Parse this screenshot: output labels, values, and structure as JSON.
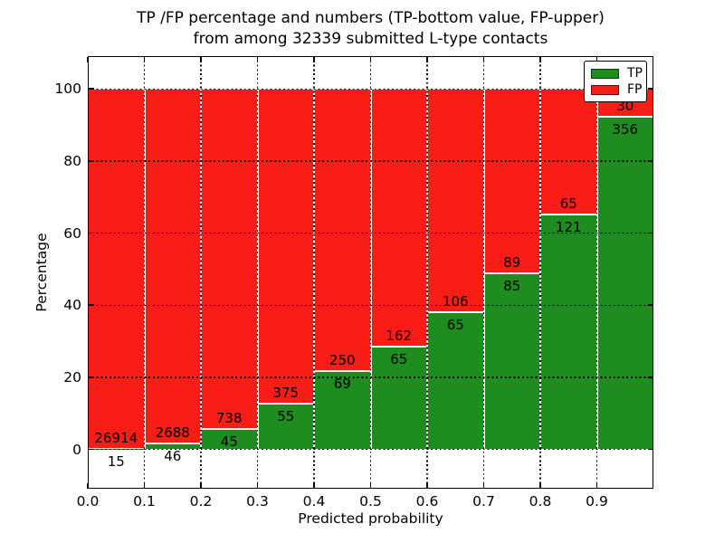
{
  "title": {
    "line1": "TP /FP percentage and numbers (TP-bottom value, FP-upper)",
    "line2": "from among 32339 submitted L-type contacts"
  },
  "axes": {
    "xlabel": "Predicted probability",
    "ylabel": "Percentage"
  },
  "chart_data": {
    "type": "bar",
    "subtype": "stacked-percentage",
    "title": "TP /FP percentage and numbers (TP-bottom value, FP-upper) from among 32339 submitted L-type contacts",
    "xlabel": "Predicted probability",
    "ylabel": "Percentage",
    "total_contacts": 32339,
    "bin_edges": [
      0.0,
      0.1,
      0.2,
      0.3,
      0.4,
      0.5,
      0.6,
      0.7,
      0.8,
      0.9,
      1.0
    ],
    "categories": [
      "0.0-0.1",
      "0.1-0.2",
      "0.2-0.3",
      "0.3-0.4",
      "0.4-0.5",
      "0.5-0.6",
      "0.6-0.7",
      "0.7-0.8",
      "0.8-0.9",
      "0.9-1.0"
    ],
    "series": [
      {
        "name": "TP",
        "color": "#1e8c1e",
        "counts": [
          15,
          46,
          45,
          55,
          69,
          65,
          65,
          85,
          121,
          356
        ]
      },
      {
        "name": "FP",
        "color": "#fa1d15",
        "counts": [
          26914,
          2688,
          738,
          375,
          250,
          162,
          106,
          89,
          65,
          30
        ]
      }
    ],
    "tp_percent": [
      0.06,
      1.68,
      5.75,
      12.79,
      21.63,
      28.63,
      38.01,
      48.85,
      65.05,
      92.23
    ],
    "x_tick_labels": [
      "0.0",
      "0.1",
      "0.2",
      "0.3",
      "0.4",
      "0.5",
      "0.6",
      "0.7",
      "0.8",
      "0.9"
    ],
    "y_ticks": [
      0,
      20,
      40,
      60,
      80,
      100
    ],
    "xlim": [
      0.0,
      1.0
    ],
    "ylim": [
      -10.9,
      109.1
    ],
    "grid": true,
    "grid_style": "dotted",
    "bar_edge_color": "#ffffff",
    "legend_position": "upper right",
    "legend_entries": [
      "TP",
      "FP"
    ]
  }
}
